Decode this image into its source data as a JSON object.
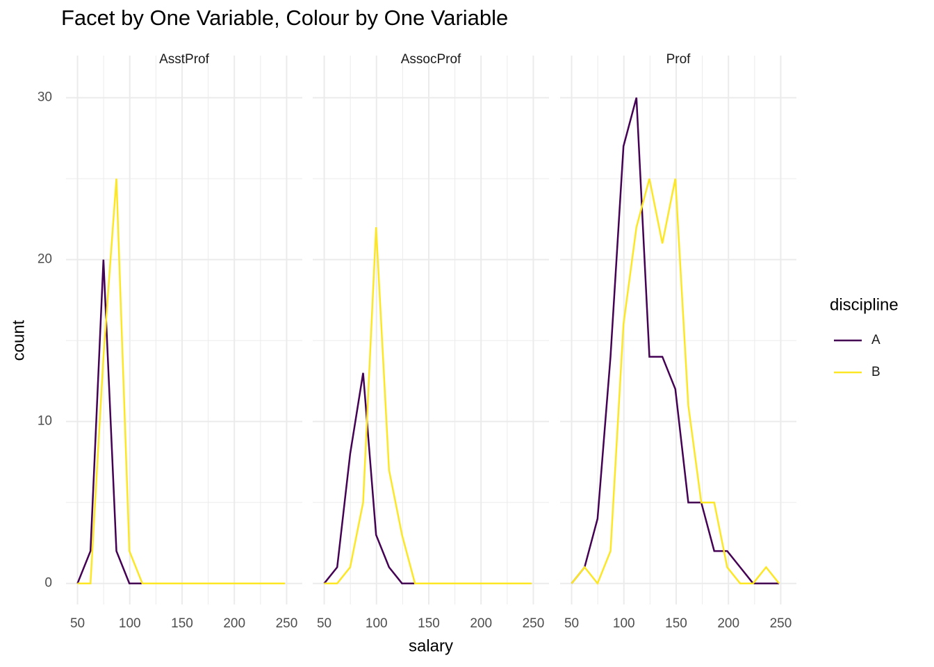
{
  "chart_data": {
    "type": "line",
    "title": "Facet by One Variable, Colour by One Variable",
    "x_label": "salary",
    "y_label": "count",
    "legend_title": "discipline",
    "x": [
      50,
      62.4,
      74.8,
      87.2,
      99.6,
      112,
      124.4,
      136.8,
      149.2,
      161.6,
      174,
      186.4,
      198.8,
      211.2,
      223.6,
      236,
      248.4
    ],
    "series": [
      {
        "name": "A",
        "color": "#440154"
      },
      {
        "name": "B",
        "color": "#FDE725"
      }
    ],
    "facets": [
      {
        "name": "AsstProf",
        "series": [
          {
            "values": [
              0,
              2,
              20,
              2,
              0,
              0,
              0,
              0,
              0,
              0,
              0,
              0,
              0,
              0,
              0,
              0,
              0
            ]
          },
          {
            "values": [
              0,
              0,
              14,
              25,
              2,
              0,
              0,
              0,
              0,
              0,
              0,
              0,
              0,
              0,
              0,
              0,
              0
            ]
          }
        ]
      },
      {
        "name": "AssocProf",
        "series": [
          {
            "values": [
              0,
              1,
              8,
              13,
              3,
              1,
              0,
              0,
              0,
              0,
              0,
              0,
              0,
              0,
              0,
              0,
              0
            ]
          },
          {
            "values": [
              0,
              0,
              1,
              5,
              22,
              7,
              3,
              0,
              0,
              0,
              0,
              0,
              0,
              0,
              0,
              0,
              0
            ]
          }
        ]
      },
      {
        "name": "Prof",
        "series": [
          {
            "values": [
              0,
              1,
              4,
              14,
              27,
              30,
              14,
              14,
              12,
              5,
              5,
              2,
              2,
              1,
              0,
              0,
              0
            ]
          },
          {
            "values": [
              0,
              1,
              0,
              2,
              16,
              22,
              25,
              21,
              25,
              11,
              5,
              5,
              1,
              0,
              0,
              1,
              0
            ]
          }
        ]
      }
    ],
    "xlim": [
      39,
      265
    ],
    "ylim": [
      -1.3,
      32.6
    ],
    "xticks": [
      50,
      100,
      150,
      200,
      250
    ],
    "yticks": [
      0,
      10,
      20,
      30
    ],
    "x_minor_ticks": [
      75,
      125,
      175,
      225
    ],
    "y_minor_ticks": [
      5,
      15,
      25
    ],
    "grid": true
  }
}
